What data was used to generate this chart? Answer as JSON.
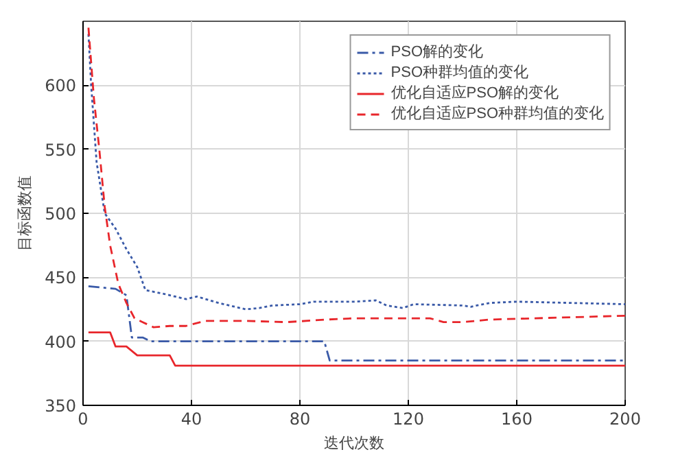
{
  "chart_data": {
    "type": "line",
    "xlabel": "迭代次数",
    "ylabel": "目标函数值",
    "xlim": [
      0,
      200
    ],
    "ylim": [
      350,
      650
    ],
    "xticks": [
      0,
      40,
      80,
      120,
      160,
      200
    ],
    "yticks": [
      350,
      400,
      450,
      500,
      550,
      600
    ],
    "grid": true,
    "legend": "top right",
    "series": [
      {
        "name": "PSO解的变化",
        "color": "#3a5aa8",
        "line_style": "dashdot",
        "x": [
          2,
          12,
          16,
          18,
          22,
          25,
          89,
          91,
          200
        ],
        "values": [
          443,
          441,
          436,
          403,
          403,
          400,
          400,
          385,
          385
        ]
      },
      {
        "name": "PSO种群均值的变化",
        "color": "#3a5aa8",
        "line_style": "dotted",
        "x": [
          2,
          3,
          5,
          8,
          12,
          16,
          20,
          23,
          30,
          38,
          42,
          50,
          60,
          65,
          70,
          80,
          85,
          100,
          108,
          112,
          118,
          122,
          140,
          143,
          150,
          160,
          180,
          200
        ],
        "values": [
          640,
          600,
          540,
          500,
          488,
          472,
          458,
          440,
          437,
          433,
          435,
          430,
          425,
          426,
          428,
          429,
          431,
          431,
          432,
          428,
          426,
          429,
          428,
          427,
          430,
          431,
          430,
          429
        ]
      },
      {
        "name": "优化自适应PSO解的变化",
        "color": "#e8262b",
        "line_style": "solid",
        "x": [
          2,
          10,
          12,
          16,
          20,
          32,
          34,
          200
        ],
        "values": [
          407,
          407,
          396,
          396,
          389,
          389,
          381,
          381
        ]
      },
      {
        "name": "优化自适应PSO种群均值的变化",
        "color": "#e8262b",
        "line_style": "dashed",
        "x": [
          2,
          4,
          6,
          8,
          10,
          13,
          16,
          19,
          22,
          26,
          32,
          38,
          45,
          60,
          75,
          90,
          100,
          128,
          133,
          140,
          150,
          200
        ],
        "values": [
          645,
          590,
          550,
          505,
          475,
          445,
          430,
          418,
          415,
          411,
          412,
          412,
          416,
          416,
          415,
          417,
          418,
          418,
          415,
          415,
          417,
          420
        ]
      }
    ]
  }
}
